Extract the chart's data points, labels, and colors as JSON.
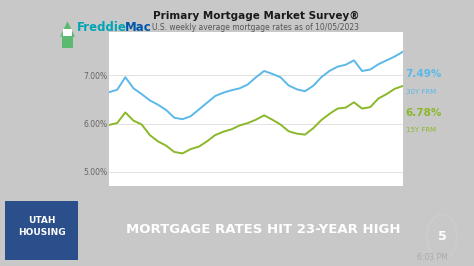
{
  "title": "Primary Mortgage Market Survey®",
  "subtitle": "U.S. weekly average mortgage rates as of 10/05/2023",
  "label_30y_pct": "7.49%",
  "label_30y_type": "30Y FRM",
  "label_15y_pct": "6.78%",
  "label_15y_type": "15Y FRM",
  "color_30y": "#5bb8e8",
  "color_15y": "#8ab82a",
  "color_freddie_green": "#5bba6f",
  "color_freddie_blue": "#0057a8",
  "color_freddie_teal": "#00a5b5",
  "ytick_labels": [
    "5.00%",
    "6.00%",
    "7.00%"
  ],
  "ytick_vals": [
    5.0,
    6.0,
    7.0
  ],
  "bg_chart": "#ffffff",
  "bg_outer": "#c8c8c8",
  "bg_bottom": "#1a2e50",
  "bg_utah_box": "#2a4f8a",
  "bottom_text": "MORTGAGE RATES HIT 23-YEAR HIGH",
  "time_text": "6:03 PM",
  "series_30y": [
    6.65,
    6.7,
    6.96,
    6.73,
    6.61,
    6.48,
    6.39,
    6.28,
    6.12,
    6.09,
    6.15,
    6.29,
    6.43,
    6.57,
    6.64,
    6.69,
    6.73,
    6.81,
    6.96,
    7.09,
    7.03,
    6.96,
    6.79,
    6.71,
    6.67,
    6.78,
    6.96,
    7.09,
    7.18,
    7.22,
    7.31,
    7.09,
    7.12,
    7.23,
    7.31,
    7.39,
    7.49
  ],
  "series_15y": [
    5.97,
    6.01,
    6.23,
    6.06,
    5.98,
    5.76,
    5.63,
    5.54,
    5.41,
    5.38,
    5.47,
    5.52,
    5.63,
    5.76,
    5.83,
    5.88,
    5.96,
    6.01,
    6.08,
    6.17,
    6.08,
    5.98,
    5.84,
    5.79,
    5.77,
    5.9,
    6.07,
    6.2,
    6.31,
    6.33,
    6.44,
    6.31,
    6.34,
    6.52,
    6.61,
    6.72,
    6.78
  ]
}
